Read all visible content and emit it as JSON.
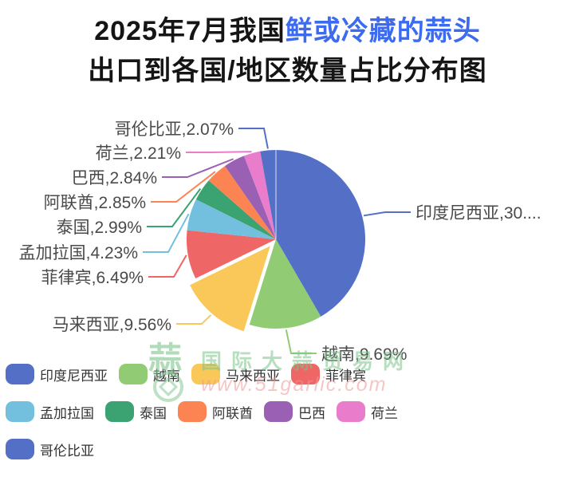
{
  "title": {
    "line1_prefix": "2025年7月我国",
    "line1_highlight": "鲜或冷藏的蒜头",
    "line2": "出口到各国/地区数量占比分布图",
    "highlight_color": "#3D6BF0"
  },
  "chart_data": {
    "type": "pie",
    "title": "2025年7月我国鲜或冷藏的蒜头出口到各国/地区数量占比分布图",
    "value_unit": "%",
    "start_angle": "12-oclock, clockwise",
    "label_separator": ",",
    "slices": [
      {
        "name": "印度尼西亚",
        "value": 30.6,
        "pct_display": "30....",
        "color": "#5470C6",
        "selected": false
      },
      {
        "name": "越南",
        "value": 9.69,
        "pct_display": "9.69%",
        "color": "#91CC75",
        "selected": false
      },
      {
        "name": "马来西亚",
        "value": 9.56,
        "pct_display": "9.56%",
        "color": "#FAC858",
        "selected": true
      },
      {
        "name": "菲律宾",
        "value": 6.49,
        "pct_display": "6.49%",
        "color": "#EE6666",
        "selected": false
      },
      {
        "name": "孟加拉国",
        "value": 4.23,
        "pct_display": "4.23%",
        "color": "#73C0DE",
        "selected": false
      },
      {
        "name": "泰国",
        "value": 2.99,
        "pct_display": "2.99%",
        "color": "#3BA272",
        "selected": false
      },
      {
        "name": "阿联酋",
        "value": 2.85,
        "pct_display": "2.85%",
        "color": "#FC8452",
        "selected": false
      },
      {
        "name": "巴西",
        "value": 2.84,
        "pct_display": "2.84%",
        "color": "#9A60B4",
        "selected": false
      },
      {
        "name": "荷兰",
        "value": 2.21,
        "pct_display": "2.21%",
        "color": "#EA7CCC",
        "selected": false
      },
      {
        "name": "哥伦比亚",
        "value": 2.07,
        "pct_display": "2.07%",
        "color": "#5470C6",
        "selected": false
      }
    ],
    "legend_rows": [
      [
        0,
        1,
        2,
        3
      ],
      [
        4,
        5,
        6,
        7,
        8
      ],
      [
        9
      ]
    ],
    "legend_position": "bottom-left"
  },
  "watermark": {
    "logo_char": "蒜",
    "site_name": "国际大蒜贸易网",
    "site_url": "www.51garlic.com"
  }
}
